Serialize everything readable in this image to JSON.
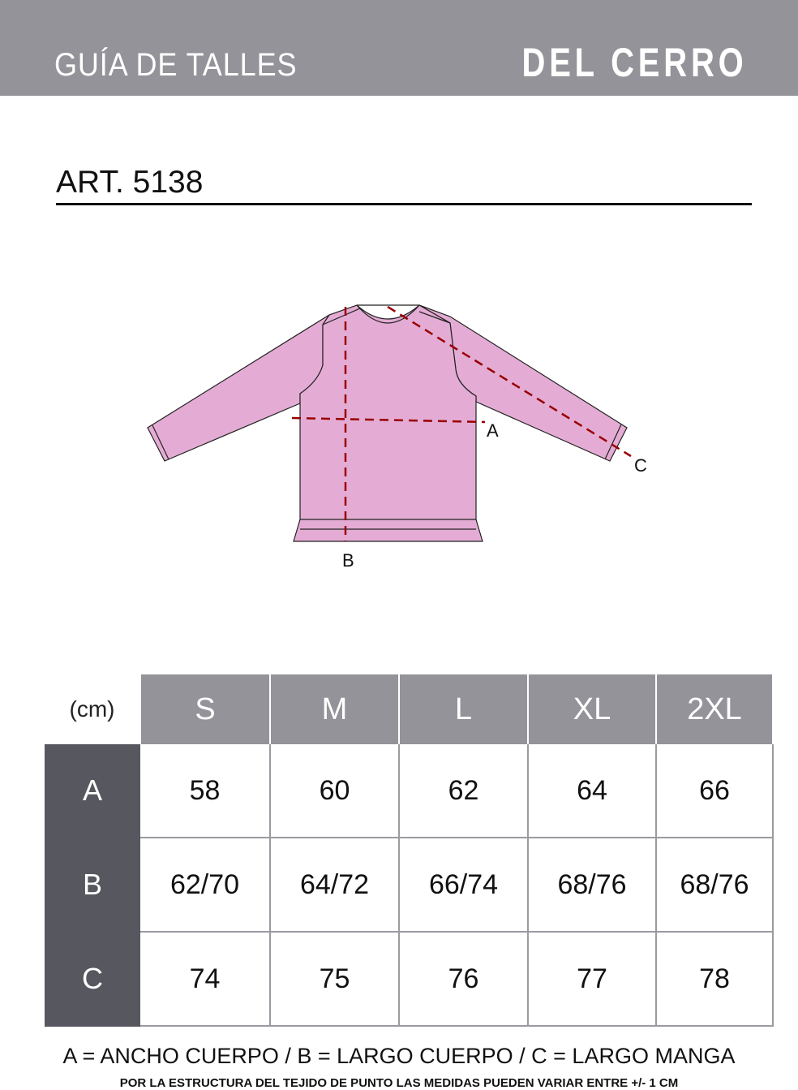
{
  "header": {
    "title": "GUÍA DE TALLES",
    "brand": "DEL CERRO"
  },
  "article": "ART. 5138",
  "diagram": {
    "labels": {
      "a": "A",
      "b": "B",
      "c": "C"
    },
    "garment_color": "#e4acd4",
    "measure_line_color": "#990000"
  },
  "table": {
    "unit": "(cm)",
    "sizes": [
      "S",
      "M",
      "L",
      "XL",
      "2XL"
    ],
    "rows": [
      {
        "label": "A",
        "values": [
          "58",
          "60",
          "62",
          "64",
          "66"
        ]
      },
      {
        "label": "B",
        "values": [
          "62/70",
          "64/72",
          "66/74",
          "68/76",
          "68/76"
        ]
      },
      {
        "label": "C",
        "values": [
          "74",
          "75",
          "76",
          "77",
          "78"
        ]
      }
    ]
  },
  "legend": "A = ANCHO CUERPO / B = LARGO CUERPO / C = LARGO MANGA",
  "note": "POR LA ESTRUCTURA DEL TEJIDO DE PUNTO  LAS MEDIDAS PUEDEN VARIAR ENTRE  +/- 1 CM"
}
